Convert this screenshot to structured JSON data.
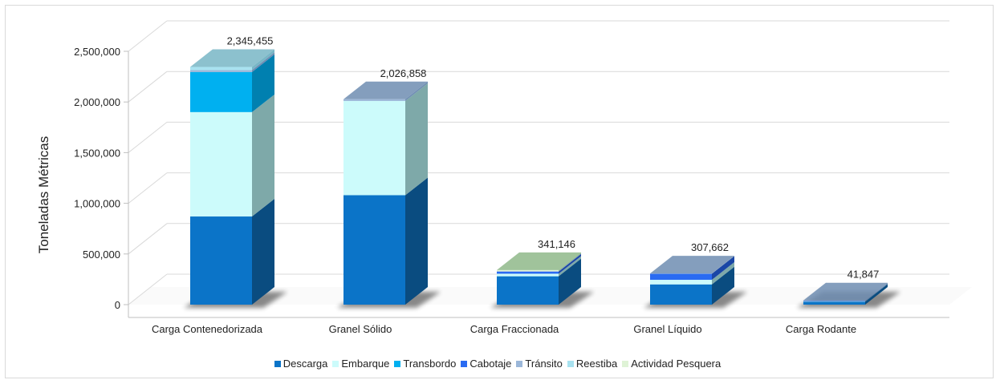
{
  "chart_data": {
    "type": "bar",
    "stacked": true,
    "three_d": true,
    "ylabel": "Toneladas Métricas",
    "xlabel": "",
    "ylim": [
      0,
      2500000
    ],
    "yticks": [
      0,
      500000,
      1000000,
      1500000,
      2000000,
      2500000
    ],
    "ytick_labels": [
      "0",
      "500,000",
      "1,000,000",
      "1,500,000",
      "2,000,000",
      "2,500,000"
    ],
    "categories": [
      "Carga Contenedorizada",
      "Granel Sólido",
      "Carga Fraccionada",
      "Granel Líquido",
      "Carga Rodante"
    ],
    "totals": [
      2345455,
      2026858,
      341146,
      307662,
      41847
    ],
    "total_labels": [
      "2,345,455",
      "2,026,858",
      "341,146",
      "307,662",
      "41,847"
    ],
    "series": [
      {
        "name": "Descarga",
        "color": "#0b74c8",
        "side": "#0a4c80",
        "values": [
          870000,
          1080000,
          280000,
          200000,
          30000
        ]
      },
      {
        "name": "Embarque",
        "color": "#ccfbfb",
        "side": "#7ea9a9",
        "values": [
          1030000,
          930000,
          25000,
          45000,
          3000
        ]
      },
      {
        "name": "Transbordo",
        "color": "#00b0f0",
        "side": "#0080b0",
        "values": [
          395000,
          0,
          0,
          0,
          0
        ]
      },
      {
        "name": "Cabotaje",
        "color": "#2a6bf2",
        "side": "#1a46a6",
        "values": [
          0,
          0,
          20000,
          60000,
          3000
        ]
      },
      {
        "name": "Tránsito",
        "color": "#9bb7d9",
        "side": "#6f8db2",
        "values": [
          20000,
          16858,
          6146,
          2662,
          5847
        ]
      },
      {
        "name": "Reestiba",
        "color": "#a8e2f0",
        "side": "#78b6c6",
        "values": [
          30455,
          0,
          0,
          0,
          0
        ]
      },
      {
        "name": "Actividad Pesquera",
        "color": "#dff3d6",
        "side": "#8fb98a",
        "values": [
          0,
          0,
          10000,
          0,
          0
        ]
      }
    ],
    "grid": true,
    "legend_position": "bottom"
  }
}
